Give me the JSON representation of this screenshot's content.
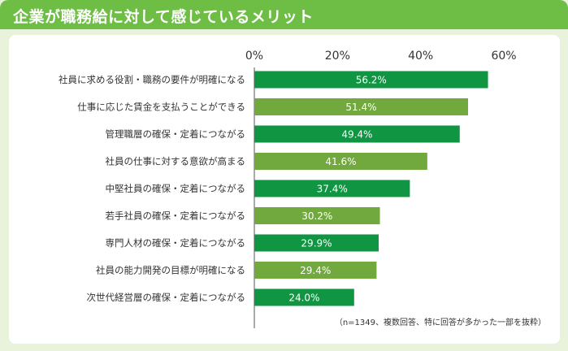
{
  "header": {
    "title": "企業が職務給に対して感じているメリット"
  },
  "colors": {
    "title_bg": "#6ebd45",
    "page_bg": "#e9f2da",
    "bar_dark": "#109543",
    "bar_light": "#72a93e"
  },
  "chart_data": {
    "type": "bar",
    "orientation": "horizontal",
    "title": "",
    "xlabel": "",
    "ylabel": "",
    "xlim": [
      0,
      60
    ],
    "ticks": [
      "0%",
      "20%",
      "40%",
      "60%"
    ],
    "categories": [
      "社員に求める役割・職務の要件が明確になる",
      "仕事に応じた賃金を支払うことができる",
      "管理職層の確保・定着につながる",
      "社員の仕事に対する意欲が高まる",
      "中堅社員の確保・定着につながる",
      "若手社員の確保・定着につながる",
      "専門人材の確保・定着につながる",
      "社員の能力開発の目標が明確になる",
      "次世代経営層の確保・定着につながる"
    ],
    "values": [
      56.2,
      51.4,
      49.4,
      41.6,
      37.4,
      30.2,
      29.9,
      29.4,
      24.0
    ],
    "value_labels": [
      "56.2%",
      "51.4%",
      "49.4%",
      "41.6%",
      "37.4%",
      "30.2%",
      "29.9%",
      "29.4%",
      "24.0%"
    ],
    "grid": false,
    "legend": "none"
  },
  "footnote": "（n=1349、複数回答、特に回答が多かった一部を抜粋）"
}
